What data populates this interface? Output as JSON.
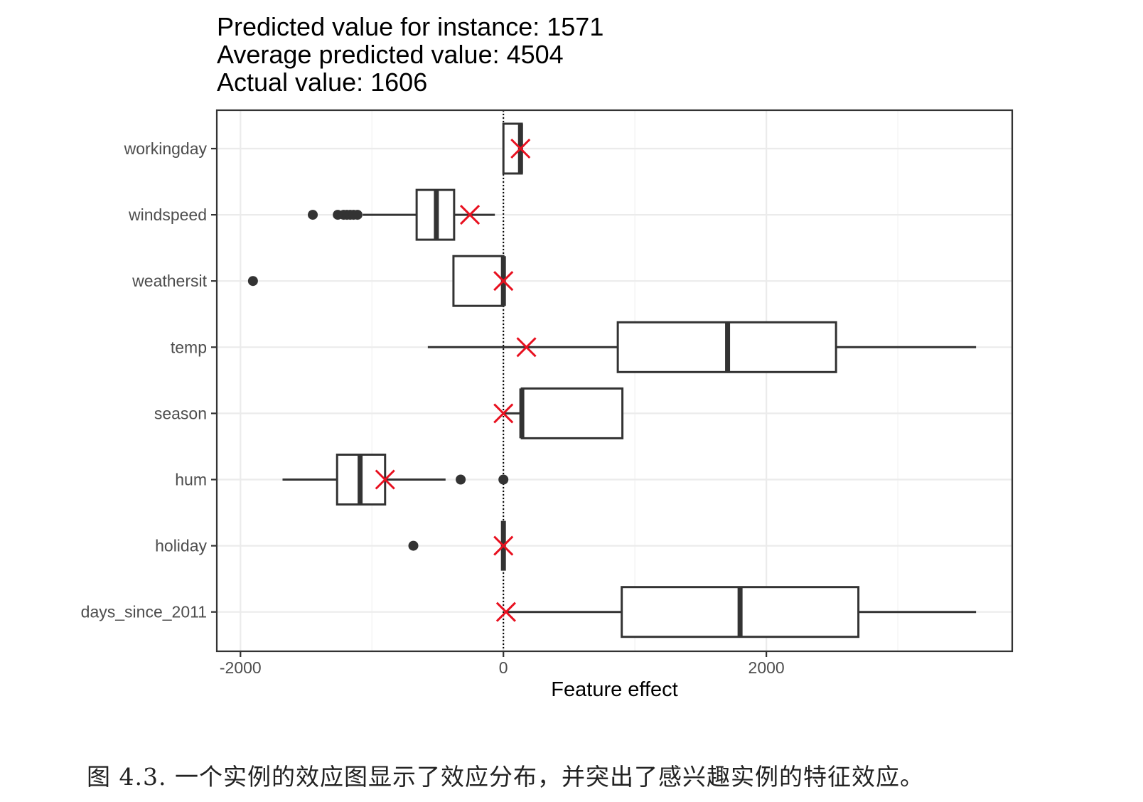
{
  "title_lines": [
    "Predicted value for instance: 1571",
    "Average predicted value: 4504",
    "Actual value: 1606"
  ],
  "caption": "图 4.3. 一个实例的效应图显示了效应分布，并突出了感兴趣实例的特征效应。",
  "chart_data": {
    "type": "boxplot",
    "orientation": "horizontal",
    "title": "Predicted value for instance: 1571\nAverage predicted value: 4504\nActual value: 1606",
    "xlabel": "Feature effect",
    "ylabel": "",
    "xlim": [
      -2180,
      3870
    ],
    "xticks": [
      -2000,
      0,
      2000
    ],
    "xtick_labels": [
      "-2000",
      "0",
      "2000"
    ],
    "grid": true,
    "reference_line": 0,
    "colors": {
      "box": "#333333",
      "instance_marker": "#e8101f",
      "grid": "#ebebeb",
      "panel_border": "#333333"
    },
    "categories": [
      "workingday",
      "windspeed",
      "weathersit",
      "temp",
      "season",
      "hum",
      "holiday",
      "days_since_2011"
    ],
    "boxes": [
      {
        "feature": "workingday",
        "whisker_low": 0,
        "q1": 0,
        "median": 130,
        "q3": 140,
        "whisker_high": 140,
        "outliers": [],
        "instance_effect": 130
      },
      {
        "feature": "windspeed",
        "whisker_low": -1070,
        "q1": -660,
        "median": -510,
        "q3": -375,
        "whisker_high": -65,
        "outliers": [
          -1450,
          -1260,
          -1215,
          -1190,
          -1165,
          -1140,
          -1110
        ],
        "instance_effect": -255
      },
      {
        "feature": "weathersit",
        "whisker_low": -380,
        "q1": -380,
        "median": 0,
        "q3": 0,
        "whisker_high": 0,
        "outliers": [
          -1905
        ],
        "instance_effect": 0
      },
      {
        "feature": "temp",
        "whisker_low": -575,
        "q1": 870,
        "median": 1705,
        "q3": 2530,
        "whisker_high": 3595,
        "outliers": [],
        "instance_effect": 175
      },
      {
        "feature": "season",
        "whisker_low": 0,
        "q1": 140,
        "median": 140,
        "q3": 905,
        "whisker_high": 905,
        "outliers": [],
        "instance_effect": 0
      },
      {
        "feature": "hum",
        "whisker_low": -1680,
        "q1": -1265,
        "median": -1090,
        "q3": -900,
        "whisker_high": -440,
        "outliers": [
          -325,
          0
        ],
        "instance_effect": -900
      },
      {
        "feature": "holiday",
        "whisker_low": 0,
        "q1": 0,
        "median": 0,
        "q3": 0,
        "whisker_high": 0,
        "outliers": [
          -685
        ],
        "instance_effect": 0
      },
      {
        "feature": "days_since_2011",
        "whisker_low": 20,
        "q1": 900,
        "median": 1800,
        "q3": 2700,
        "whisker_high": 3595,
        "outliers": [],
        "instance_effect": 20
      }
    ]
  }
}
